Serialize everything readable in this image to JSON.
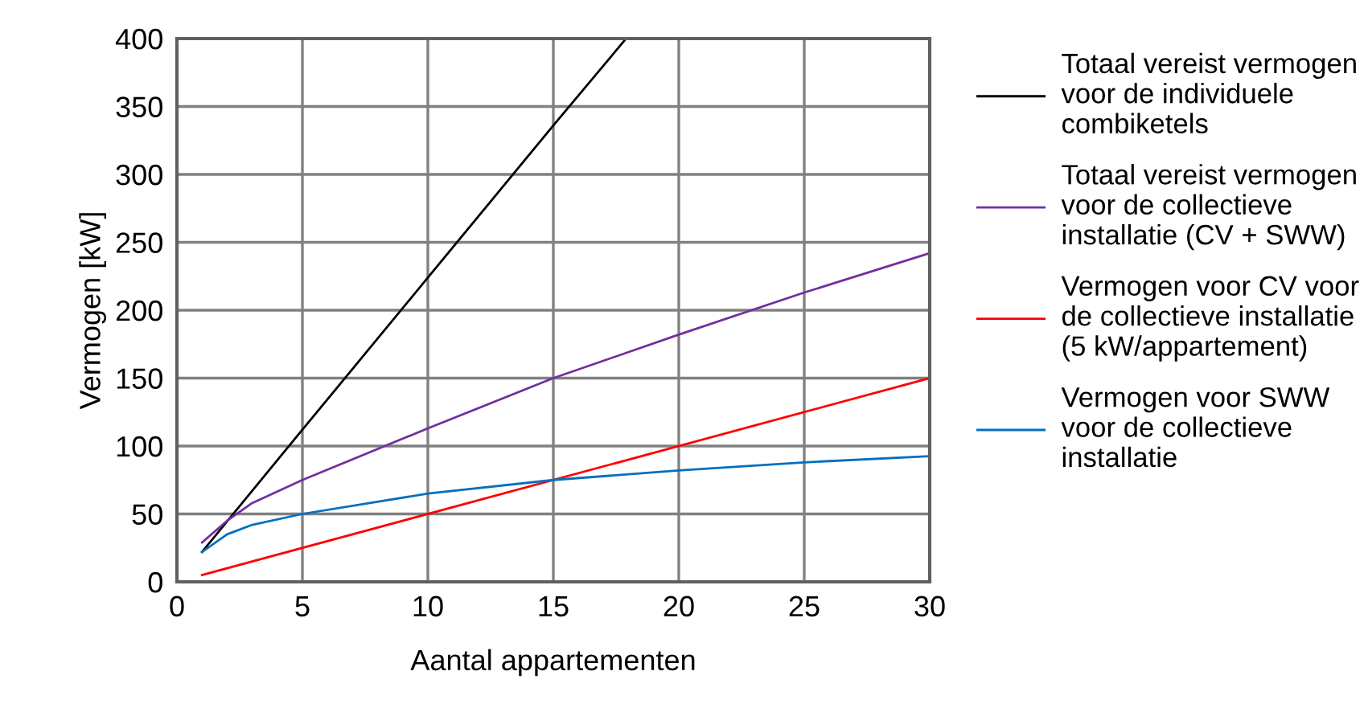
{
  "chart_data": {
    "type": "line",
    "xlabel": "Aantal appartementen",
    "ylabel": "Vermogen [kW]",
    "xlim": [
      0,
      30
    ],
    "ylim": [
      0,
      400
    ],
    "xticks": [
      0,
      5,
      10,
      15,
      20,
      25,
      30
    ],
    "yticks": [
      0,
      50,
      100,
      150,
      200,
      250,
      300,
      350,
      400
    ],
    "grid": true,
    "legend": "right",
    "marker": "none",
    "line_style": "solid",
    "series": [
      {
        "name": "Totaal vereist vermogen\nvoor de individuele\ncombiketels",
        "color": "#000000",
        "x": [
          1,
          5,
          10,
          15,
          17.9
        ],
        "values": [
          22,
          112,
          224,
          336,
          400
        ]
      },
      {
        "name": "Totaal vereist vermogen\nvoor de collectieve\ninstallatie (CV + SWW)",
        "color": "#7030a0",
        "x": [
          1,
          2,
          3,
          5,
          10,
          15,
          20,
          25,
          30
        ],
        "values": [
          29,
          45,
          58,
          75,
          113,
          150,
          182,
          213,
          242
        ]
      },
      {
        "name": "Vermogen voor CV voor\nde collectieve installatie\n(5 kW/appartement)",
        "color": "#ff0000",
        "x": [
          1,
          30
        ],
        "values": [
          5,
          150
        ]
      },
      {
        "name": "Vermogen voor SWW\nvoor de collectieve\ninstallatie",
        "color": "#0070c0",
        "x": [
          1,
          2,
          3,
          5,
          10,
          15,
          20,
          25,
          30
        ],
        "values": [
          22,
          35,
          42,
          50,
          65,
          75,
          82,
          88,
          92.5
        ]
      }
    ]
  }
}
